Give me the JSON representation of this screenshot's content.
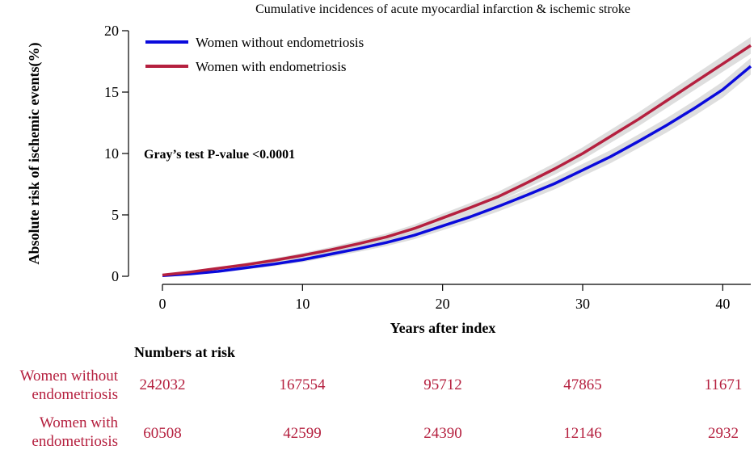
{
  "colors": {
    "without": "#0a0adc",
    "with": "#b5203f",
    "ci_band": "#c8c8c8"
  },
  "chart_data": {
    "type": "line",
    "title": "Cumulative incidences of acute myocardial infarction & ischemic stroke",
    "xlabel": "Years after index",
    "ylabel": "Absolute risk of ischemic events(%)",
    "xlim": [
      0,
      42
    ],
    "ylim": [
      0,
      20
    ],
    "xticks": [
      "0",
      "10",
      "20",
      "30",
      "40"
    ],
    "yticks": [
      "0",
      "5",
      "10",
      "15",
      "20"
    ],
    "grid": false,
    "legend_position": "top-left",
    "annotation": "Gray’s test P-value <0.0001",
    "series": [
      {
        "name": "Women without endometriosis",
        "color": "#0a0adc",
        "x": [
          0,
          2,
          4,
          6,
          8,
          10,
          12,
          14,
          16,
          18,
          20,
          22,
          24,
          26,
          28,
          30,
          32,
          34,
          36,
          38,
          40,
          42
        ],
        "y": [
          0.05,
          0.2,
          0.4,
          0.7,
          1.0,
          1.35,
          1.8,
          2.25,
          2.75,
          3.35,
          4.1,
          4.85,
          5.7,
          6.6,
          7.55,
          8.65,
          9.75,
          11.0,
          12.3,
          13.7,
          15.2,
          17.1
        ]
      },
      {
        "name": "Women with endometriosis",
        "color": "#b5203f",
        "x": [
          0,
          2,
          4,
          6,
          8,
          10,
          12,
          14,
          16,
          18,
          20,
          22,
          24,
          26,
          28,
          30,
          32,
          34,
          36,
          38,
          40,
          42
        ],
        "y": [
          0.1,
          0.35,
          0.65,
          0.95,
          1.3,
          1.7,
          2.15,
          2.65,
          3.2,
          3.9,
          4.75,
          5.6,
          6.5,
          7.6,
          8.75,
          10.0,
          11.4,
          12.8,
          14.3,
          15.8,
          17.3,
          18.8
        ]
      }
    ]
  },
  "risk_table": {
    "title": "Numbers at risk",
    "time_points": [
      0,
      10,
      20,
      30,
      40
    ],
    "rows": [
      {
        "label_line1": "Women without",
        "label_line2": "endometriosis",
        "color": "#0a0adc",
        "values": [
          "242032",
          "167554",
          "95712",
          "47865",
          "11671"
        ]
      },
      {
        "label_line1": "Women with",
        "label_line2": "endometriosis",
        "color": "#b5203f",
        "values": [
          "60508",
          "42599",
          "24390",
          "12146",
          "2932"
        ]
      }
    ]
  }
}
